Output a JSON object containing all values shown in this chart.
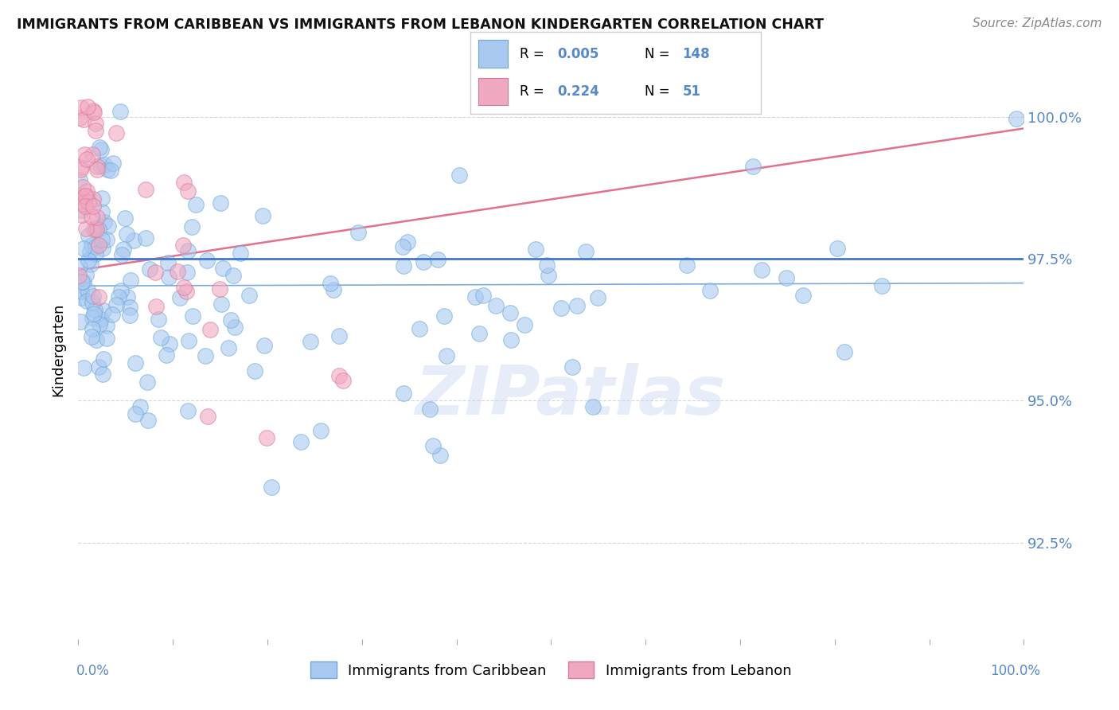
{
  "title": "IMMIGRANTS FROM CARIBBEAN VS IMMIGRANTS FROM LEBANON KINDERGARTEN CORRELATION CHART",
  "source": "Source: ZipAtlas.com",
  "ylabel": "Kindergarten",
  "ytick_labels": [
    "92.5%",
    "95.0%",
    "97.5%",
    "100.0%"
  ],
  "ytick_values": [
    0.925,
    0.95,
    0.975,
    1.0
  ],
  "ylim": [
    0.908,
    1.01
  ],
  "xlim": [
    0.0,
    1.0
  ],
  "blue_color": "#a8c8f0",
  "blue_edge": "#6aaad8",
  "pink_color": "#f0a8c0",
  "pink_edge": "#d87898",
  "blue_line_color": "#4488cc",
  "pink_line_color": "#e06080",
  "corr_blue_R": "0.005",
  "corr_blue_N": "148",
  "corr_pink_R": "0.224",
  "corr_pink_N": "51",
  "watermark": "ZIPatlas",
  "watermark_color": "#c8d8f0",
  "ref_line_y": 0.975,
  "ref_line_color": "#4477cc",
  "grid_color": "#cccccc",
  "title_color": "#111111",
  "source_color": "#888888",
  "tick_label_color": "#5588cc",
  "legend_border_color": "#cccccc"
}
